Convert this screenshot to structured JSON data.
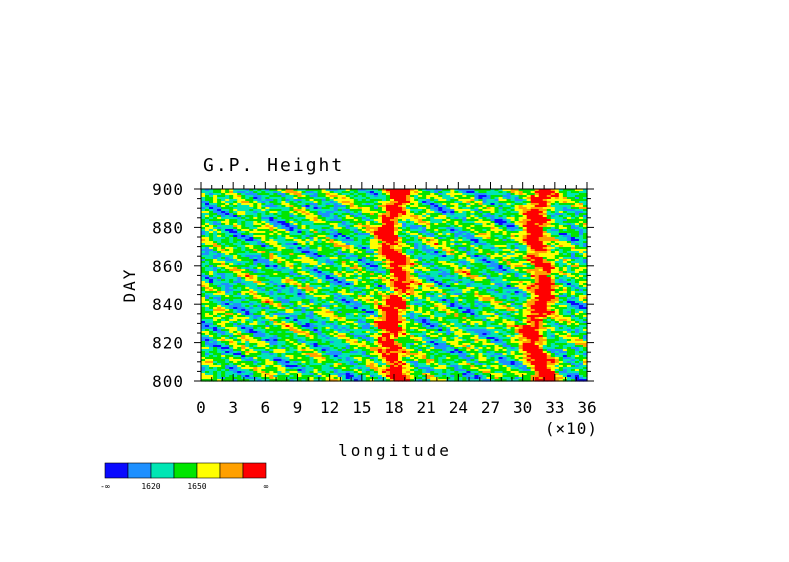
{
  "chart_data": {
    "type": "heatmap",
    "title": "G.P. Height",
    "xlabel": "longitude",
    "ylabel": "DAY",
    "x_scale_note": "(×10)",
    "xlim": [
      0,
      36
    ],
    "ylim": [
      800,
      900
    ],
    "x_ticks": [
      "0",
      "3",
      "6",
      "9",
      "12",
      "15",
      "18",
      "21",
      "24",
      "27",
      "30",
      "33",
      "36"
    ],
    "y_ticks": [
      "800",
      "820",
      "840",
      "860",
      "880",
      "900"
    ],
    "grid": false,
    "legend_placement": "bottom-left",
    "colorbar": {
      "colors": [
        "#0a0aff",
        "#1e90ff",
        "#00e6b4",
        "#00e600",
        "#ffff00",
        "#ffa000",
        "#ff0000"
      ],
      "labels": [
        "-∞",
        "1620",
        "1650",
        "∞"
      ]
    },
    "ridges_longitude": [
      18,
      31.5
    ]
  }
}
